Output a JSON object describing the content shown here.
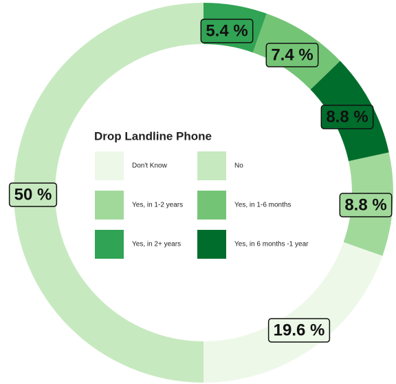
{
  "chart_data": {
    "type": "donut",
    "title": "Drop Landline Phone",
    "categories": [
      "Don't Know",
      "No",
      "Yes, in 1-2 years",
      "Yes, in 1-6 months",
      "Yes, in 2+ years",
      "Yes, in 6 months -1 year"
    ],
    "values": [
      19.6,
      50,
      8.8,
      7.4,
      5.4,
      8.8
    ],
    "value_labels": [
      "19.6 %",
      "50 %",
      "8.8 %",
      "7.4 %",
      "5.4 %",
      "8.8 %"
    ],
    "colors": [
      "#edf8e9",
      "#c7e9c0",
      "#a1d99b",
      "#74c476",
      "#31a354",
      "#006d2c"
    ]
  }
}
